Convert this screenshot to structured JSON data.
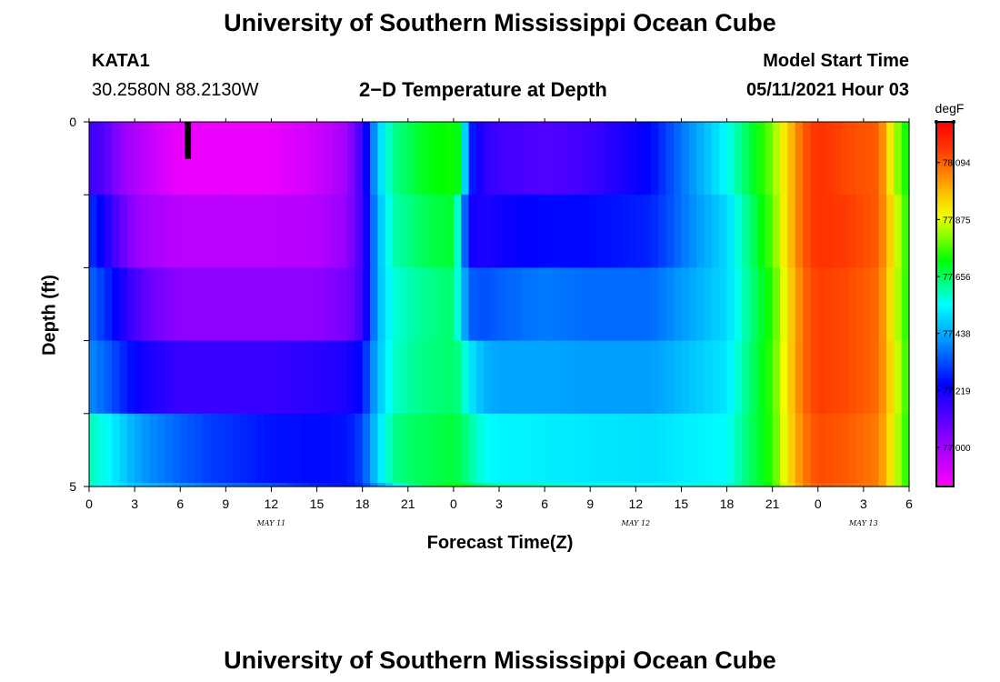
{
  "header": {
    "title_top": "University of Southern Mississippi Ocean Cube",
    "title_bottom": "University of Southern Mississippi Ocean Cube",
    "station": "KATA1",
    "coords": "30.2580N  88.2130W",
    "plot_title": "2−D Temperature at Depth",
    "model_label": "Model Start Time",
    "model_time": "05/11/2021 Hour 03"
  },
  "chart_data": {
    "type": "heatmap",
    "title": "2−D Temperature at Depth",
    "xlabel": "Forecast Time(Z)",
    "ylabel": "Depth (ft)",
    "x_tick_labels": [
      "0",
      "3",
      "6",
      "9",
      "12",
      "15",
      "18",
      "21",
      "0",
      "3",
      "6",
      "9",
      "12",
      "15",
      "18",
      "21",
      "0",
      "3",
      "6"
    ],
    "x_range_hours": [
      0,
      54
    ],
    "date_labels": [
      {
        "text": "MAY 11",
        "hour": 12
      },
      {
        "text": "MAY 12",
        "hour": 36
      },
      {
        "text": "MAY 13",
        "hour": 51
      }
    ],
    "y_tick_labels": [
      "0",
      "5"
    ],
    "y_range_ft": [
      0,
      5
    ],
    "colorbar": {
      "unit": "degF",
      "min": 76.85,
      "max": 78.25,
      "labels": [
        "78.094",
        "77.875",
        "77.656",
        "77.438",
        "77.219",
        "77.000"
      ],
      "label_values": [
        78.094,
        77.875,
        77.656,
        77.438,
        77.219,
        77.0
      ]
    },
    "marker": {
      "hour": 6.5,
      "depth_from": 0,
      "depth_to": 0.5
    },
    "layer_depths_ft": [
      0,
      1,
      2,
      3,
      4,
      5
    ],
    "hour_keys": [
      0,
      1,
      2,
      3,
      4,
      6,
      8,
      12,
      15,
      17,
      18,
      19,
      20,
      21,
      22,
      24,
      24.5,
      25,
      26,
      27,
      30,
      33,
      37,
      42,
      45,
      46,
      47,
      48,
      50,
      52,
      53,
      54
    ],
    "temperature_layers_degF": [
      [
        77.16,
        77.12,
        77.03,
        76.98,
        76.94,
        76.88,
        76.88,
        76.88,
        76.93,
        77.0,
        77.16,
        77.48,
        77.62,
        77.66,
        77.7,
        77.73,
        77.68,
        77.3,
        77.18,
        77.15,
        77.12,
        77.15,
        77.25,
        77.55,
        77.8,
        77.95,
        78.1,
        78.16,
        78.12,
        78.1,
        77.85,
        77.7
      ],
      [
        77.3,
        77.22,
        77.1,
        77.02,
        76.99,
        76.96,
        76.96,
        76.96,
        76.97,
        77.02,
        77.15,
        77.45,
        77.6,
        77.63,
        77.66,
        77.69,
        77.48,
        77.22,
        77.2,
        77.22,
        77.25,
        77.25,
        77.28,
        77.5,
        77.78,
        77.95,
        78.1,
        78.16,
        78.14,
        78.1,
        77.9,
        77.72
      ],
      [
        77.36,
        77.3,
        77.22,
        77.14,
        77.08,
        77.03,
        77.03,
        77.03,
        77.03,
        77.06,
        77.15,
        77.45,
        77.57,
        77.6,
        77.62,
        77.65,
        77.5,
        77.35,
        77.33,
        77.35,
        77.38,
        77.36,
        77.36,
        77.5,
        77.75,
        77.92,
        78.08,
        78.14,
        78.12,
        78.08,
        77.88,
        77.72
      ],
      [
        77.4,
        77.36,
        77.3,
        77.24,
        77.2,
        77.16,
        77.16,
        77.16,
        77.18,
        77.2,
        77.26,
        77.46,
        77.58,
        77.61,
        77.63,
        77.65,
        77.62,
        77.53,
        77.45,
        77.43,
        77.43,
        77.42,
        77.42,
        77.52,
        77.76,
        77.93,
        78.08,
        78.14,
        78.12,
        78.08,
        77.9,
        77.73
      ],
      [
        77.6,
        77.56,
        77.5,
        77.44,
        77.4,
        77.35,
        77.31,
        77.26,
        77.25,
        77.26,
        77.32,
        77.5,
        77.62,
        77.65,
        77.66,
        77.68,
        77.66,
        77.62,
        77.56,
        77.54,
        77.53,
        77.52,
        77.51,
        77.55,
        77.75,
        77.92,
        78.06,
        78.12,
        78.1,
        78.06,
        77.88,
        77.72
      ],
      [
        77.58,
        77.55,
        77.52,
        77.48,
        77.46,
        77.42,
        77.38,
        77.34,
        77.28,
        77.26,
        77.3,
        77.42,
        77.52,
        77.6,
        77.66,
        77.72,
        77.73,
        77.68,
        77.64,
        77.62,
        77.6,
        77.57,
        77.56,
        77.58,
        77.73,
        77.9,
        78.04,
        78.1,
        78.08,
        78.06,
        77.88,
        77.72
      ]
    ]
  }
}
